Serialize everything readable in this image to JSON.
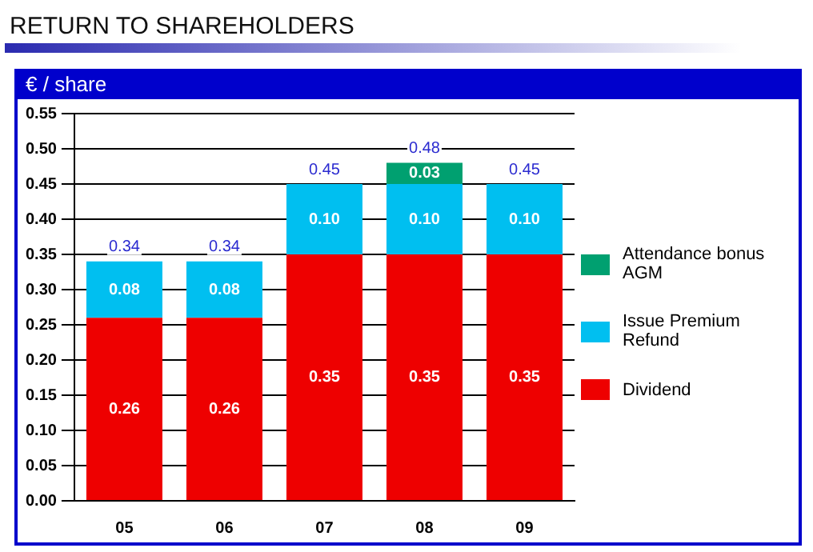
{
  "chart_data": {
    "type": "bar",
    "title": "RETURN TO SHAREHOLDERS",
    "ylabel": "€ / share",
    "categories": [
      "05",
      "06",
      "07",
      "08",
      "09"
    ],
    "stacked": true,
    "series": [
      {
        "name": "Dividend",
        "color": "#ee0000",
        "values": [
          0.26,
          0.26,
          0.35,
          0.35,
          0.35
        ],
        "value_labels": [
          "0.26",
          "0.26",
          "0.35",
          "0.35",
          "0.35"
        ]
      },
      {
        "name": "Issue Premium Refund",
        "color": "#00bff0",
        "values": [
          0.08,
          0.08,
          0.1,
          0.1,
          0.1
        ],
        "value_labels": [
          "0.08",
          "0.08",
          "0.10",
          "0.10",
          "0.10"
        ]
      },
      {
        "name": "Attendance bonus AGM",
        "color": "#00a070",
        "values": [
          null,
          null,
          null,
          0.03,
          null
        ],
        "value_labels": [
          null,
          null,
          null,
          "0.03",
          null
        ]
      }
    ],
    "ylim": [
      0,
      0.55
    ],
    "yticks": [
      {
        "value": 0,
        "label": "0.00"
      },
      {
        "value": 0.05,
        "label": "0.05"
      },
      {
        "value": 0.1,
        "label": "0.10"
      },
      {
        "value": 0.15,
        "label": "0.15"
      },
      {
        "value": 0.2,
        "label": "0.20"
      },
      {
        "value": 0.25,
        "label": "0.25"
      },
      {
        "value": 0.3,
        "label": "0.30"
      },
      {
        "value": 0.35,
        "label": "0.35"
      },
      {
        "value": 0.4,
        "label": "0.40"
      },
      {
        "value": 0.45,
        "label": "0.45"
      },
      {
        "value": 0.5,
        "label": "0.50"
      },
      {
        "value": 0.55,
        "label": "0.55"
      }
    ],
    "grid": "y",
    "legend": "right",
    "totals": [
      "0.34",
      "0.34",
      "0.45",
      "0.48",
      "0.45"
    ]
  }
}
